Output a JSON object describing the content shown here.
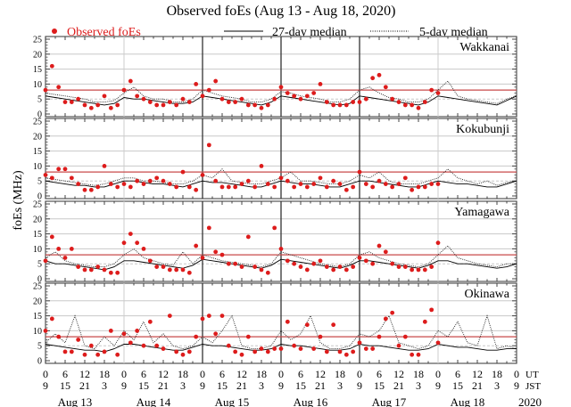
{
  "chart_data": {
    "type": "scatter",
    "title": "Observed foEs (Aug 13 - Aug 18, 2020)",
    "ylabel": "foEs (MHz)",
    "ylim": [
      0,
      25
    ],
    "yticks": [
      0,
      5,
      10,
      15,
      20,
      25
    ],
    "threshold": 8,
    "legend": {
      "observed": "Observed foEs",
      "median27": "27-day median",
      "median5": "5-day median",
      "placement": "top"
    },
    "colors": {
      "observed": "#dd1c1c",
      "threshold": "#c84a4a",
      "grid": "#c8c8c8",
      "axis": "#444444"
    },
    "x_hour_ticks_ut": [
      "0",
      "6",
      "12",
      "18"
    ],
    "x_hour_ticks_jst": [
      "9",
      "15",
      "21",
      "3"
    ],
    "x_final_tick": {
      "ut": "0",
      "jst": "9"
    },
    "x_timezone_labels": {
      "ut": "UT",
      "jst": "JST"
    },
    "days": [
      "Aug 13",
      "Aug 14",
      "Aug 15",
      "Aug 16",
      "Aug 17",
      "Aug 18"
    ],
    "year": "2020",
    "observed_interval_hours": 2,
    "median_interval_hours": 3,
    "stations": [
      {
        "name": "Wakkanai",
        "observed": [
          8,
          16,
          9,
          4,
          4,
          5,
          3,
          2,
          3,
          6,
          2,
          3,
          8,
          11,
          6,
          5,
          4,
          3,
          3,
          4,
          3,
          5,
          4,
          10,
          6,
          8,
          11,
          5,
          4,
          4,
          5,
          3,
          3,
          2,
          3,
          5,
          9,
          7,
          6,
          5,
          6,
          7,
          10,
          4,
          3,
          3,
          3,
          4,
          4,
          5,
          12,
          13,
          9,
          5,
          4,
          3,
          3,
          2,
          4,
          8,
          7
        ],
        "median27": [
          6,
          5.5,
          5,
          4.5,
          4,
          3.5,
          3,
          3.5,
          5.5,
          5,
          5,
          4.5,
          4,
          3.5,
          3.5,
          4,
          6,
          5.5,
          5,
          4.5,
          4,
          3.5,
          3,
          4,
          6,
          5.5,
          5,
          4.5,
          4,
          3.5,
          3,
          3.5,
          6,
          5.5,
          5,
          4.5,
          4,
          3.5,
          3,
          4,
          6,
          5.5,
          5,
          4.5,
          4,
          3.5,
          3,
          4.5,
          6
        ],
        "median5": [
          7,
          6.5,
          6,
          5.5,
          5,
          4,
          4,
          4.5,
          7,
          9,
          6,
          5,
          5,
          4,
          4,
          5,
          8,
          7,
          6,
          5.5,
          5,
          4,
          4,
          5,
          7.5,
          7,
          6,
          5.5,
          5,
          4,
          4,
          5,
          8,
          9,
          7,
          5.5,
          5,
          4,
          4,
          5,
          8,
          11,
          6,
          5,
          4.5,
          4,
          3.5,
          5,
          6
        ]
      },
      {
        "name": "Kokubunji",
        "observed": [
          7,
          6,
          9,
          9,
          6,
          4,
          2,
          2,
          3,
          10,
          4,
          3,
          4,
          3,
          5,
          4,
          5,
          6,
          5,
          4,
          3,
          8,
          3,
          2,
          7,
          17,
          5,
          3,
          3,
          3,
          4,
          5,
          3,
          10,
          4,
          3,
          6,
          5,
          3,
          4,
          3,
          4,
          6,
          3,
          5,
          4,
          2,
          3,
          8,
          4,
          3,
          5,
          4,
          3,
          4,
          6,
          2,
          3,
          3,
          4,
          4
        ],
        "median27": [
          5,
          4.5,
          4,
          3.5,
          3.5,
          3,
          3,
          4,
          5,
          5,
          4.5,
          4,
          4,
          3.5,
          3,
          4,
          5,
          4.5,
          4.5,
          4,
          3.5,
          3,
          3,
          4,
          5,
          4.5,
          4,
          4,
          3.5,
          3,
          3,
          4,
          5,
          5,
          4.5,
          4,
          3.5,
          3,
          3,
          4,
          5,
          4.5,
          4,
          4,
          3.5,
          3,
          3,
          4,
          5
        ],
        "median5": [
          6,
          5.5,
          5,
          4.5,
          4,
          3.5,
          4,
          5,
          6,
          6,
          5,
          5,
          4.5,
          4,
          4,
          5,
          7,
          6,
          9,
          5,
          4.5,
          4,
          4,
          5,
          6,
          8,
          5,
          5,
          4.5,
          4,
          4,
          5,
          7,
          6,
          8,
          5,
          4,
          4,
          4,
          5,
          6,
          9,
          6,
          5,
          4,
          5,
          3.5,
          4.5,
          5
        ]
      },
      {
        "name": "Yamagawa",
        "observed": [
          6,
          14,
          10,
          7,
          10,
          4,
          3,
          3,
          4,
          3,
          2,
          2,
          12,
          15,
          12,
          10,
          6,
          4,
          4,
          3,
          3,
          3,
          2,
          11,
          7,
          17,
          9,
          8,
          5,
          5,
          4,
          14,
          4,
          3,
          2,
          17,
          10,
          6,
          5,
          4,
          3,
          5,
          6,
          4,
          3,
          4,
          3,
          4,
          7,
          6,
          5,
          11,
          9,
          5,
          4,
          4,
          3,
          3,
          3,
          4,
          12
        ],
        "median27": [
          6,
          5,
          5,
          4.5,
          4,
          3.5,
          3,
          4,
          6,
          6,
          5.5,
          5,
          4.5,
          4,
          3.5,
          4.5,
          6.5,
          6,
          5.5,
          5,
          4.5,
          4,
          3.5,
          4.5,
          6.5,
          6,
          5.5,
          5,
          4.5,
          4,
          3.5,
          4.5,
          6,
          6,
          5.5,
          5,
          4.5,
          4,
          3.5,
          4.5,
          6,
          6,
          5,
          5,
          4.5,
          4,
          3.5,
          4,
          5
        ],
        "median5": [
          7,
          9,
          6,
          5,
          4.5,
          4,
          4,
          5,
          8,
          10,
          7,
          6,
          5,
          4.5,
          9,
          5,
          8,
          7,
          6,
          5.5,
          5,
          4.5,
          4,
          5,
          9,
          8,
          7,
          6,
          5,
          4.5,
          4,
          5,
          8,
          9,
          7,
          6,
          5,
          4.5,
          4,
          5,
          8,
          11,
          7,
          6,
          5,
          4.5,
          4,
          5,
          5
        ]
      },
      {
        "name": "Okinawa",
        "observed": [
          10,
          14,
          8,
          3,
          3,
          7,
          2,
          5,
          2,
          3,
          10,
          2,
          9,
          6,
          10,
          5,
          13,
          5,
          4,
          15,
          3,
          2,
          3,
          8,
          14,
          15,
          9,
          15,
          5,
          3,
          2,
          8,
          3,
          4,
          3,
          4,
          4,
          13,
          5,
          4,
          12,
          4,
          8,
          3,
          12,
          3,
          2,
          3,
          6,
          4,
          4,
          8,
          14,
          16,
          5,
          8,
          2,
          2,
          13,
          17,
          6
        ],
        "median27": [
          5.5,
          5,
          4.5,
          4,
          3.5,
          3.5,
          3,
          4,
          5.5,
          5.5,
          5,
          4.5,
          4,
          3.5,
          3.5,
          4.5,
          5.5,
          5,
          5,
          4.5,
          4,
          3.5,
          3.5,
          4,
          5.5,
          5,
          5,
          4.5,
          4,
          3.5,
          3.5,
          4,
          5.5,
          5,
          5,
          4.5,
          4,
          3.5,
          3.5,
          4,
          5.5,
          5,
          4.5,
          4.5,
          4,
          3.5,
          3.5,
          4,
          4
        ],
        "median5": [
          6,
          9,
          6,
          15,
          5,
          4,
          8,
          5,
          10,
          7,
          13,
          6,
          9,
          5,
          4,
          5,
          8,
          6,
          10,
          15,
          5,
          4,
          4,
          5,
          10,
          7,
          9,
          15,
          6,
          4,
          4,
          5,
          9,
          8,
          10,
          15,
          6,
          5,
          4,
          5,
          10,
          8,
          13,
          6,
          5,
          15,
          4,
          5,
          4
        ]
      }
    ]
  }
}
